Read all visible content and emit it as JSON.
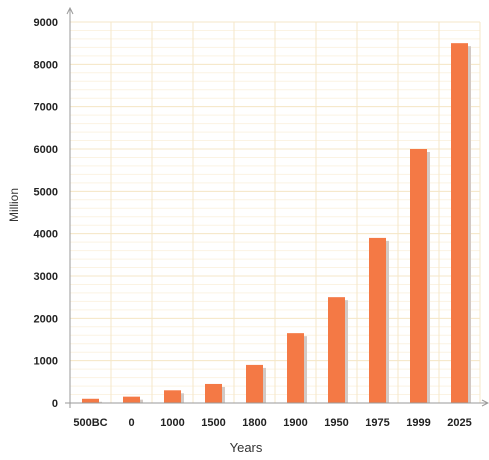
{
  "chart_data": {
    "type": "bar",
    "categories": [
      "500BC",
      "0",
      "1000",
      "1500",
      "1800",
      "1900",
      "1950",
      "1975",
      "1999",
      "2025"
    ],
    "values": [
      100,
      150,
      300,
      450,
      900,
      1650,
      2500,
      3900,
      6000,
      8500
    ],
    "xlabel": "Years",
    "ylabel": "Million",
    "ylim": [
      0,
      9000
    ],
    "yticks": [
      0,
      1000,
      2000,
      3000,
      4000,
      5000,
      6000,
      7000,
      8000,
      9000
    ],
    "grid": true,
    "colors": {
      "bar": "#f47945",
      "bar_shadow": "#d3c9c4",
      "grid": "#f5e7c8",
      "minor_grid": "#fbf3e3",
      "axis": "#9a9a9a"
    }
  }
}
